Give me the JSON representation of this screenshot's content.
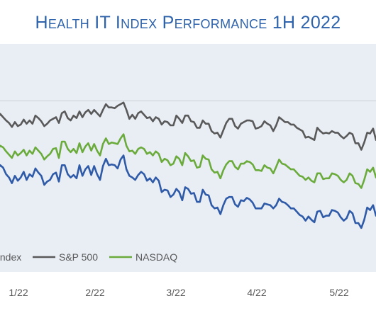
{
  "chart_data": {
    "type": "line",
    "title": "Health IT Index Performance 1H 2022",
    "x_tick_labels": [
      "1/22",
      "2/22",
      "3/22",
      "4/22",
      "5/22"
    ],
    "colors": {
      "title": "#2e63ac",
      "background": "#e9eef5",
      "gridline": "#c8cdd6",
      "health_it_index": "#2e5aa8",
      "sp500": "#595959",
      "nasdaq": "#6aab3b"
    },
    "legend": [
      "Index",
      "S&P 500",
      "NASDAQ"
    ],
    "legend_placement": "bottom",
    "grid": true,
    "series": [
      {
        "name": "S&P 500",
        "values": [
          165,
          157,
          164,
          160,
          156,
          153,
          148,
          154,
          149,
          151,
          157,
          152,
          156,
          152,
          162,
          159,
          155,
          149,
          152,
          156,
          158,
          160,
          153,
          165,
          167,
          159,
          156,
          162,
          159,
          167,
          160,
          166,
          169,
          164,
          169,
          165,
          161,
          169,
          176,
          172,
          172,
          171,
          174,
          176,
          178,
          169,
          158,
          163,
          158,
          165,
          167,
          163,
          159,
          160,
          155,
          160,
          158,
          151,
          155,
          154,
          150,
          150,
          162,
          158,
          153,
          162,
          162,
          155,
          154,
          147,
          147,
          156,
          152,
          152,
          143,
          140,
          141,
          135,
          144,
          153,
          158,
          158,
          149,
          146,
          152,
          154,
          156,
          156,
          155,
          146,
          147,
          149,
          155,
          152,
          150,
          143,
          150,
          160,
          157,
          154,
          154,
          151,
          151,
          147,
          145,
          143,
          135,
          136,
          134,
          132,
          147,
          143,
          140,
          141,
          140,
          143,
          141,
          141,
          137,
          134,
          137,
          141,
          139,
          128,
          128,
          120,
          129,
          141,
          140,
          146,
          132
        ]
      },
      {
        "name": "NASDAQ",
        "values": [
          126,
          119,
          125,
          123,
          118,
          114,
          110,
          118,
          113,
          116,
          120,
          113,
          119,
          115,
          123,
          119,
          115,
          108,
          112,
          115,
          121,
          122,
          110,
          130,
          130,
          121,
          117,
          121,
          116,
          128,
          117,
          124,
          128,
          119,
          127,
          119,
          113,
          127,
          134,
          127,
          129,
          128,
          127,
          134,
          139,
          125,
          118,
          119,
          115,
          121,
          123,
          121,
          115,
          117,
          113,
          118,
          115,
          105,
          109,
          107,
          101,
          103,
          112,
          109,
          101,
          116,
          112,
          106,
          107,
          98,
          99,
          113,
          109,
          108,
          96,
          92,
          93,
          85,
          95,
          102,
          106,
          106,
          99,
          96,
          103,
          103,
          106,
          105,
          102,
          95,
          95,
          94,
          101,
          98,
          97,
          91,
          99,
          108,
          103,
          102,
          99,
          96,
          96,
          92,
          88,
          87,
          83,
          86,
          82,
          80,
          91,
          91,
          84,
          85,
          85,
          91,
          90,
          88,
          83,
          80,
          83,
          91,
          88,
          79,
          78,
          73,
          83,
          96,
          93,
          98,
          86
        ]
      },
      {
        "name": "Health IT Index",
        "values": [
          103,
          95,
          101,
          98,
          90,
          86,
          79,
          88,
          82,
          86,
          93,
          83,
          90,
          87,
          97,
          92,
          88,
          77,
          81,
          83,
          90,
          92,
          81,
          101,
          101,
          90,
          86,
          89,
          85,
          101,
          88,
          96,
          100,
          89,
          100,
          90,
          83,
          100,
          109,
          101,
          102,
          101,
          97,
          108,
          113,
          96,
          88,
          86,
          83,
          89,
          93,
          90,
          82,
          85,
          80,
          86,
          82,
          68,
          71,
          70,
          62,
          65,
          72,
          68,
          58,
          74,
          72,
          66,
          67,
          56,
          56,
          71,
          65,
          64,
          52,
          48,
          49,
          41,
          52,
          60,
          62,
          62,
          53,
          50,
          58,
          57,
          61,
          59,
          55,
          48,
          48,
          48,
          54,
          53,
          52,
          48,
          52,
          60,
          56,
          55,
          52,
          48,
          48,
          44,
          40,
          38,
          33,
          38,
          34,
          31,
          44,
          45,
          37,
          39,
          39,
          46,
          45,
          43,
          37,
          33,
          36,
          45,
          42,
          30,
          30,
          24,
          34,
          49,
          46,
          52,
          39
        ]
      }
    ]
  }
}
